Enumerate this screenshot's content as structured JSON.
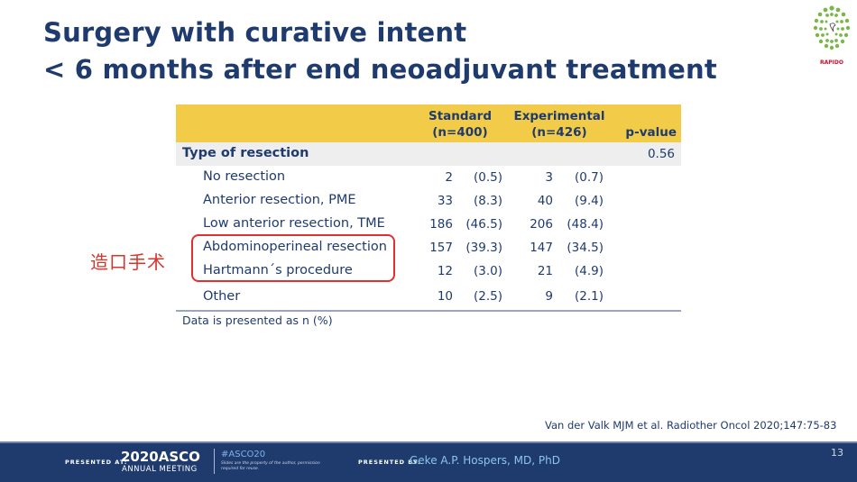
{
  "title": {
    "line1": "Surgery with curative intent",
    "line2": "< 6 months after end neoadjuvant treatment"
  },
  "logo": {
    "label": "RAPIDO",
    "icon": "rapido-logo-icon",
    "color": "#7ab648"
  },
  "table": {
    "header": {
      "standard": [
        "Standard",
        "(n=400)"
      ],
      "experimental": [
        "Experimental",
        "(n=426)"
      ],
      "pvalue": "p-value"
    },
    "section": {
      "label": "Type of resection",
      "pvalue": "0.56"
    },
    "rows": [
      {
        "label": "No resection",
        "std_n": "2",
        "std_pct": "(0.5)",
        "exp_n": "3",
        "exp_pct": "(0.7)"
      },
      {
        "label": "Anterior resection, PME",
        "std_n": "33",
        "std_pct": "(8.3)",
        "exp_n": "40",
        "exp_pct": "(9.4)"
      },
      {
        "label": "Low anterior resection, TME",
        "std_n": "186",
        "std_pct": "(46.5)",
        "exp_n": "206",
        "exp_pct": "(48.4)"
      },
      {
        "label": "Abdominoperineal resection",
        "std_n": "157",
        "std_pct": "(39.3)",
        "exp_n": "147",
        "exp_pct": "(34.5)"
      },
      {
        "label": "Hartmann´s procedure",
        "std_n": "12",
        "std_pct": "(3.0)",
        "exp_n": "21",
        "exp_pct": "(4.9)"
      },
      {
        "label": "Other",
        "std_n": "10",
        "std_pct": "(2.5)",
        "exp_n": "9",
        "exp_pct": "(2.1)"
      }
    ],
    "footnote": "Data is presented as n (%)"
  },
  "annotation": {
    "text": "造口手术",
    "color": "#e0302f"
  },
  "citation": "Van der Valk MJM  et al. Radiother Oncol 2020;147:75-83",
  "footer": {
    "presented_at": "PRESENTED AT:",
    "asco_year": "2020ASCO",
    "asco_meeting": "ANNUAL MEETING",
    "hashtag": "#ASCO20",
    "slide_note": "Slides are the property of the author, permission required for reuse.",
    "presented_by": "PRESENTED BY:",
    "presenter": "Geke A.P. Hospers, MD, PhD",
    "slide_number": "13"
  },
  "colors": {
    "primary": "#1f3b6e",
    "header_band": "#f2cb48",
    "section_band": "#eeeeee",
    "footer": "#1f3b6e"
  }
}
